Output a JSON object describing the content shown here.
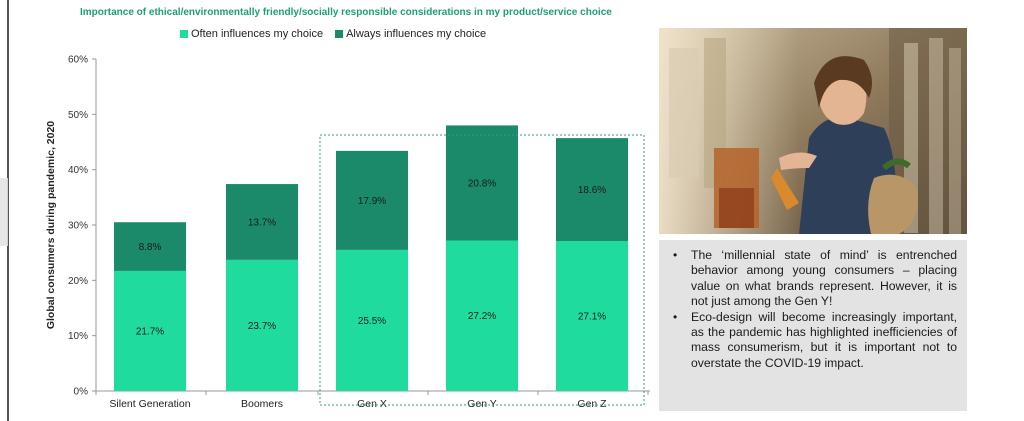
{
  "chart_data": {
    "type": "bar",
    "stacked": true,
    "title": "Importance of ethical/environmentally friendly/socially responsible considerations in my product/service choice",
    "ylabel": "Global consumers during pandemic, 2020",
    "xlabel": "",
    "ylim": [
      0,
      60
    ],
    "yticks": [
      0,
      10,
      20,
      30,
      40,
      50,
      60
    ],
    "ytick_labels": [
      "0%",
      "10%",
      "20%",
      "30%",
      "40%",
      "50%",
      "60%"
    ],
    "categories": [
      "Silent Generation",
      "Boomers",
      "Gen X",
      "Gen Y",
      "Gen Z"
    ],
    "series": [
      {
        "name": "Often influences my choice",
        "color": "#1fdc9e",
        "values": [
          21.7,
          23.7,
          25.5,
          27.2,
          27.1
        ],
        "labels": [
          "21.7%",
          "23.7%",
          "25.5%",
          "27.2%",
          "27.1%"
        ]
      },
      {
        "name": "Always influences my choice",
        "color": "#1b8a6b",
        "values": [
          8.8,
          13.7,
          17.9,
          20.8,
          18.6
        ],
        "labels": [
          "8.8%",
          "13.7%",
          "17.9%",
          "20.8%",
          "18.6%"
        ]
      }
    ],
    "highlight_categories": [
      "Gen X",
      "Gen Y",
      "Gen Z"
    ],
    "legend_position": "top",
    "grid": false
  },
  "bullets": [
    "The ‘millennial state of mind’ is entrenched behavior among young consumers – placing value on what brands represent. However, it is not just among the Gen Y!",
    "Eco-design will become increasingly important, as the pandemic has highlighted inefficiencies of mass consumerism, but it is important not to overstate the COVID-19 impact."
  ],
  "bullet_glyph": "•"
}
